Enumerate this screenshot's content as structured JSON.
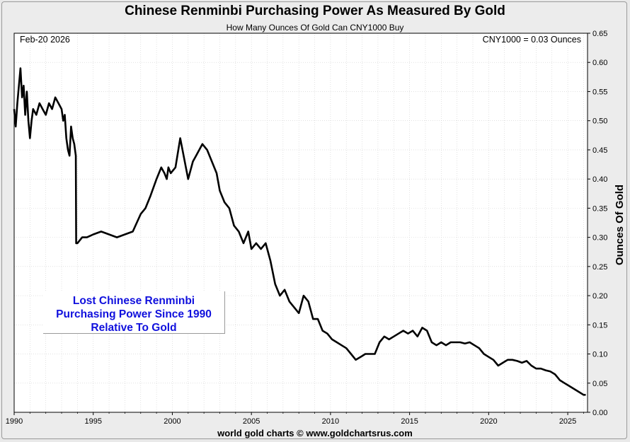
{
  "header": {
    "title": "Chinese Renminbi Purchasing Power As Measured By Gold",
    "subtitle": "How Many Ounces Of Gold Can CNY1000 Buy"
  },
  "date_label": "Feb-20  2026",
  "readout": "CNY1000 = 0.03 Ounces",
  "annotation": {
    "line1": "Lost Chinese Renminbi",
    "line2": "Purchasing Power Since 1990",
    "line3": "Relative To Gold"
  },
  "footer": "world gold charts © www.goldchartsrus.com",
  "colors": {
    "line": "#000000",
    "annotation": "#1010dd",
    "plot_bg": "#ffffff",
    "grid": "#cfcfcf"
  },
  "chart_data": {
    "type": "line",
    "title": "Chinese Renminbi Purchasing Power As Measured By Gold",
    "subtitle": "How Many Ounces Of Gold Can CNY1000 Buy",
    "ylabel": "Ounces Of Gold",
    "xlabel": "",
    "xlim": [
      1990,
      2026.25
    ],
    "ylim": [
      0,
      0.65
    ],
    "x_ticks": [
      1990,
      1995,
      2000,
      2005,
      2010,
      2015,
      2020,
      2025
    ],
    "x_tick_labels": [
      "1990",
      "1995",
      "2000",
      "2005",
      "2010",
      "2015",
      "2020",
      "2025"
    ],
    "y_ticks": [
      0,
      0.05,
      0.1,
      0.15,
      0.2,
      0.25,
      0.3,
      0.35,
      0.4,
      0.45,
      0.5,
      0.55,
      0.6,
      0.65
    ],
    "y_tick_labels": [
      "0.00",
      "0.05",
      "0.10",
      "0.15",
      "0.20",
      "0.25",
      "0.30",
      "0.35",
      "0.40",
      "0.45",
      "0.50",
      "0.55",
      "0.60",
      "0.65"
    ],
    "y_axis_side": "right",
    "grid": true,
    "series": [
      {
        "x": [
          1990.0,
          1990.1,
          1990.2,
          1990.3,
          1990.4,
          1990.5,
          1990.6,
          1990.7,
          1990.8,
          1990.9,
          1991.0,
          1991.1,
          1991.2,
          1991.4,
          1991.6,
          1991.8,
          1992.0,
          1992.2,
          1992.4,
          1992.6,
          1992.8,
          1993.0,
          1993.1,
          1993.2,
          1993.3,
          1993.4,
          1993.5,
          1993.6,
          1993.7,
          1993.8,
          1993.9,
          1993.92,
          1994.0,
          1994.3,
          1994.6,
          1995.0,
          1995.5,
          1996.0,
          1996.5,
          1997.0,
          1997.5,
          1998.0,
          1998.3,
          1998.6,
          1999.0,
          1999.3,
          1999.5,
          1999.65,
          1999.75,
          1999.9,
          2000.2,
          2000.5,
          2001.0,
          2001.3,
          2001.5,
          2001.9,
          2002.2,
          2002.5,
          2002.8,
          2003.0,
          2003.3,
          2003.6,
          2003.9,
          2004.2,
          2004.5,
          2004.8,
          2005.0,
          2005.3,
          2005.6,
          2005.9,
          2006.2,
          2006.5,
          2006.8,
          2007.1,
          2007.4,
          2007.7,
          2008.0,
          2008.3,
          2008.6,
          2008.9,
          2009.2,
          2009.5,
          2009.8,
          2010.1,
          2010.4,
          2010.7,
          2011.0,
          2011.3,
          2011.6,
          2011.9,
          2012.2,
          2012.5,
          2012.8,
          2013.1,
          2013.4,
          2013.7,
          2014.0,
          2014.3,
          2014.6,
          2014.9,
          2015.2,
          2015.5,
          2015.8,
          2016.1,
          2016.4,
          2016.7,
          2017.0,
          2017.3,
          2017.6,
          2017.9,
          2018.2,
          2018.5,
          2018.8,
          2019.1,
          2019.4,
          2019.7,
          2020.0,
          2020.3,
          2020.6,
          2020.9,
          2021.2,
          2021.5,
          2021.8,
          2022.1,
          2022.4,
          2022.7,
          2023.0,
          2023.3,
          2023.6,
          2023.9,
          2024.2,
          2024.5,
          2024.8,
          2025.1,
          2025.4,
          2025.7,
          2026.0,
          2026.14
        ],
        "values": [
          0.52,
          0.49,
          0.53,
          0.56,
          0.59,
          0.54,
          0.56,
          0.51,
          0.55,
          0.5,
          0.47,
          0.5,
          0.52,
          0.51,
          0.53,
          0.52,
          0.51,
          0.53,
          0.52,
          0.54,
          0.53,
          0.52,
          0.5,
          0.51,
          0.47,
          0.45,
          0.44,
          0.49,
          0.47,
          0.46,
          0.44,
          0.29,
          0.29,
          0.3,
          0.3,
          0.305,
          0.31,
          0.305,
          0.3,
          0.305,
          0.31,
          0.34,
          0.35,
          0.37,
          0.4,
          0.42,
          0.41,
          0.4,
          0.42,
          0.41,
          0.42,
          0.47,
          0.4,
          0.43,
          0.44,
          0.46,
          0.45,
          0.43,
          0.41,
          0.38,
          0.36,
          0.35,
          0.32,
          0.31,
          0.29,
          0.31,
          0.28,
          0.29,
          0.28,
          0.29,
          0.26,
          0.22,
          0.2,
          0.21,
          0.19,
          0.18,
          0.17,
          0.2,
          0.19,
          0.16,
          0.16,
          0.14,
          0.135,
          0.125,
          0.12,
          0.115,
          0.11,
          0.1,
          0.09,
          0.095,
          0.1,
          0.1,
          0.1,
          0.12,
          0.13,
          0.125,
          0.13,
          0.135,
          0.14,
          0.135,
          0.14,
          0.13,
          0.145,
          0.14,
          0.12,
          0.115,
          0.12,
          0.115,
          0.12,
          0.12,
          0.12,
          0.118,
          0.12,
          0.115,
          0.11,
          0.1,
          0.095,
          0.09,
          0.08,
          0.085,
          0.09,
          0.09,
          0.088,
          0.085,
          0.088,
          0.08,
          0.075,
          0.075,
          0.072,
          0.07,
          0.065,
          0.055,
          0.05,
          0.045,
          0.04,
          0.035,
          0.03,
          0.03
        ]
      }
    ]
  }
}
